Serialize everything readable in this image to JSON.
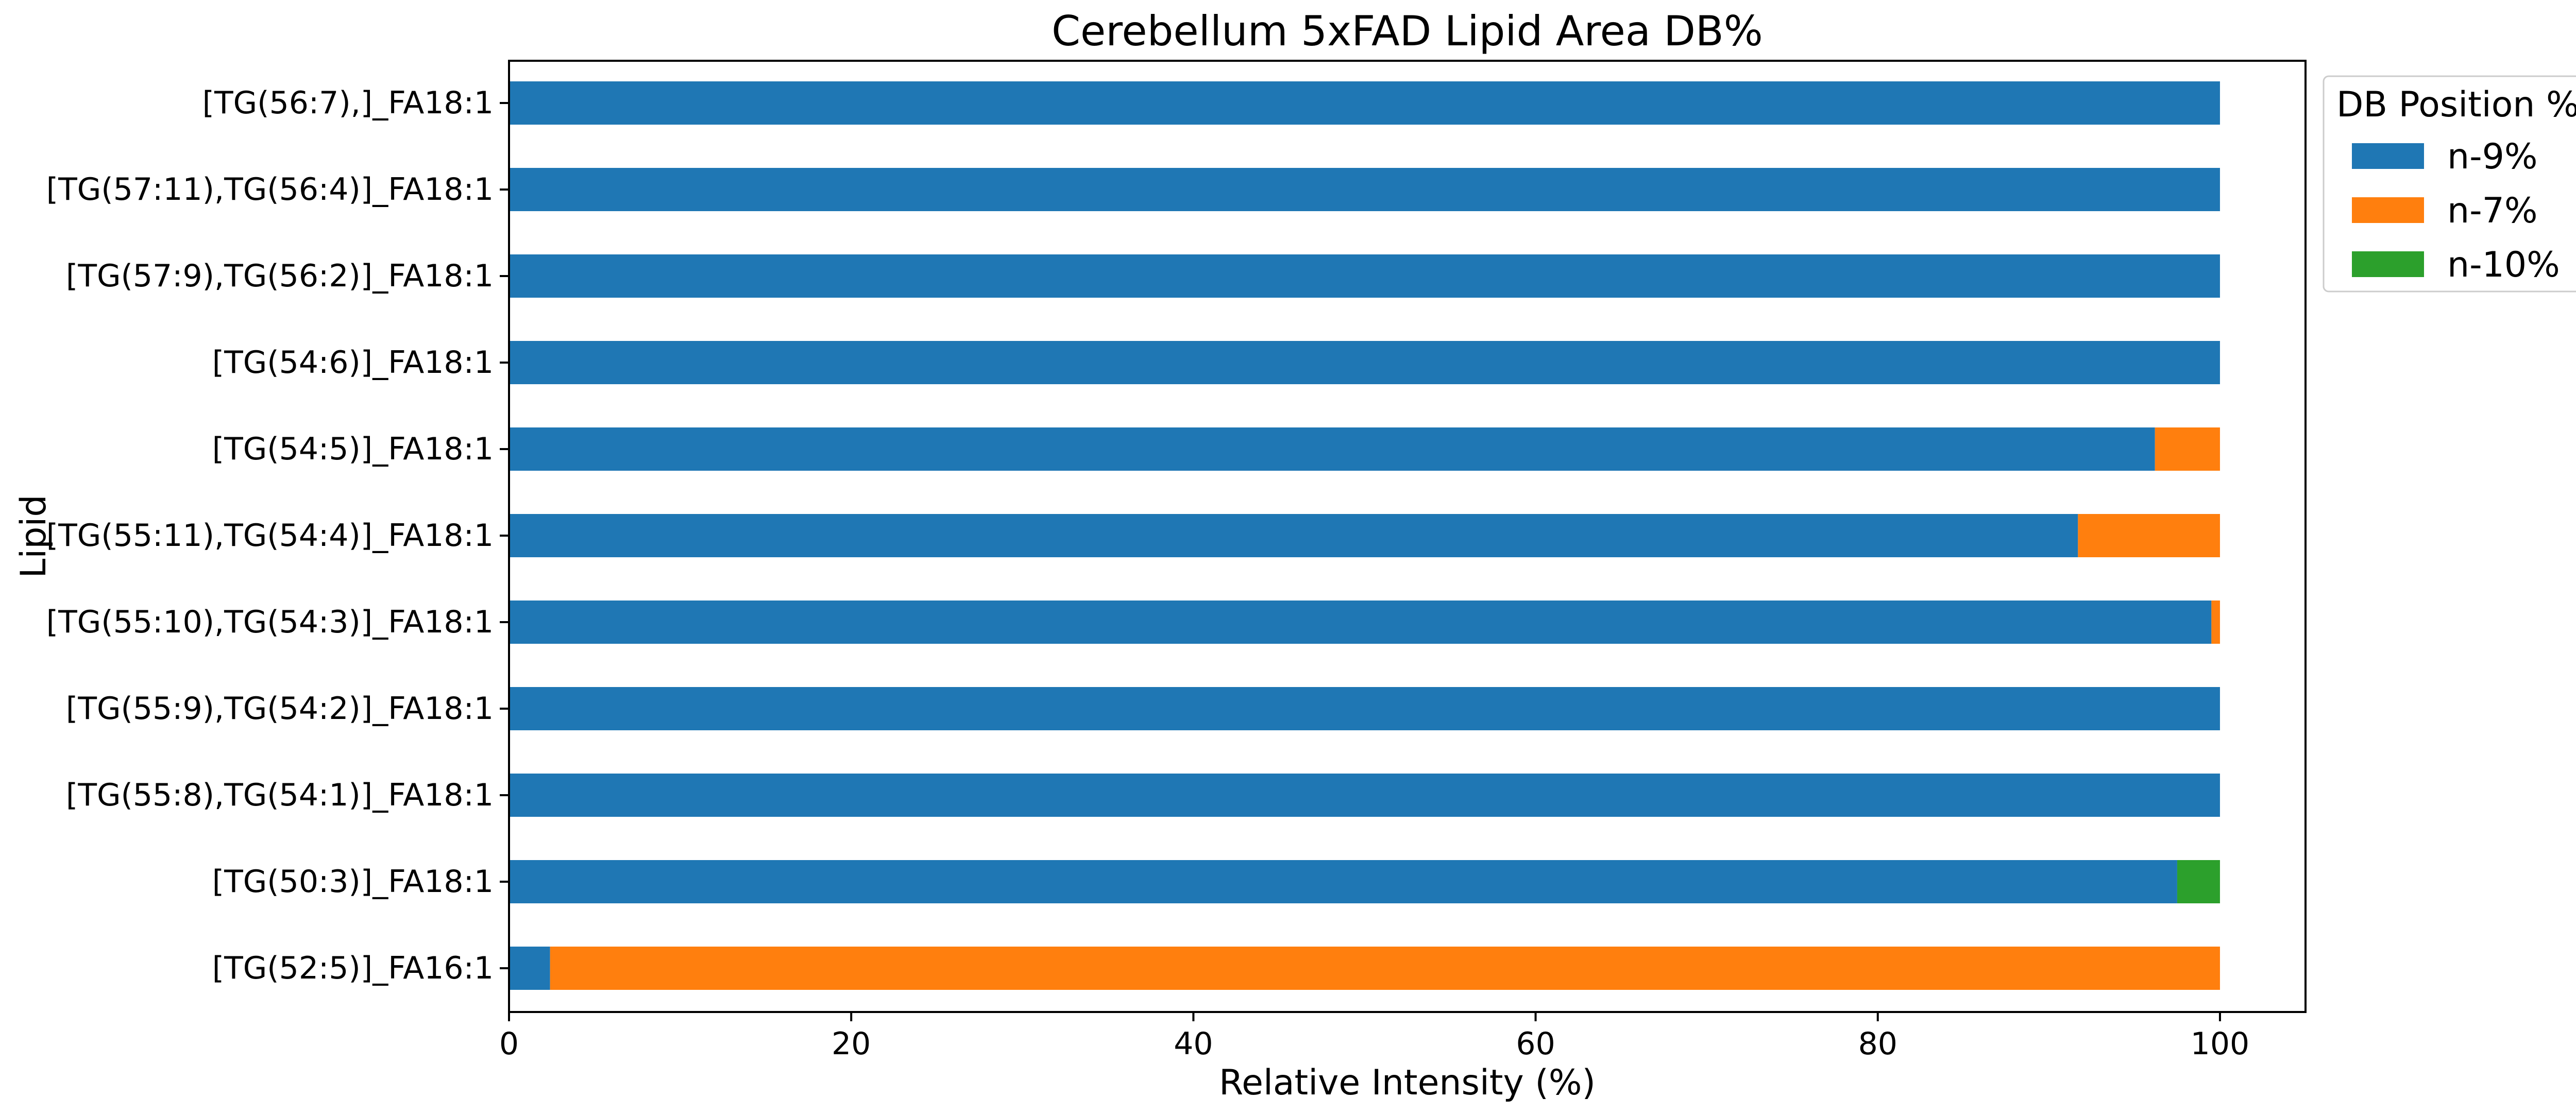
{
  "chart_data": {
    "type": "bar",
    "orientation": "horizontal",
    "stacked": true,
    "title": "Cerebellum 5xFAD Lipid Area DB%",
    "xlabel": "Relative Intensity (%)",
    "ylabel": "Lipid",
    "xlim": [
      0,
      105
    ],
    "xticks": [
      0,
      20,
      40,
      60,
      80,
      100
    ],
    "grid": false,
    "legend": {
      "title": "DB Position %",
      "placement": "outside-top-right"
    },
    "categories": [
      "[TG(56:7),]_FA18:1",
      "[TG(57:11),TG(56:4)]_FA18:1",
      "[TG(57:9),TG(56:2)]_FA18:1",
      "[TG(54:6)]_FA18:1",
      "[TG(54:5)]_FA18:1",
      "[TG(55:11),TG(54:4)]_FA18:1",
      "[TG(55:10),TG(54:3)]_FA18:1",
      "[TG(55:9),TG(54:2)]_FA18:1",
      "[TG(55:8),TG(54:1)]_FA18:1",
      "[TG(50:3)]_FA18:1",
      "[TG(52:5)]_FA16:1"
    ],
    "series": [
      {
        "name": "n-9%",
        "color": "#1f77b4",
        "values": [
          100,
          100,
          100,
          100,
          96.2,
          91.7,
          99.5,
          100,
          100,
          97.5,
          2.4
        ]
      },
      {
        "name": "n-7%",
        "color": "#ff7f0e",
        "values": [
          0,
          0,
          0,
          0,
          3.8,
          8.3,
          0.5,
          0,
          0,
          0,
          97.6
        ]
      },
      {
        "name": "n-10%",
        "color": "#2ca02c",
        "values": [
          0,
          0,
          0,
          0,
          0,
          0,
          0,
          0,
          0,
          2.5,
          0
        ]
      }
    ]
  }
}
